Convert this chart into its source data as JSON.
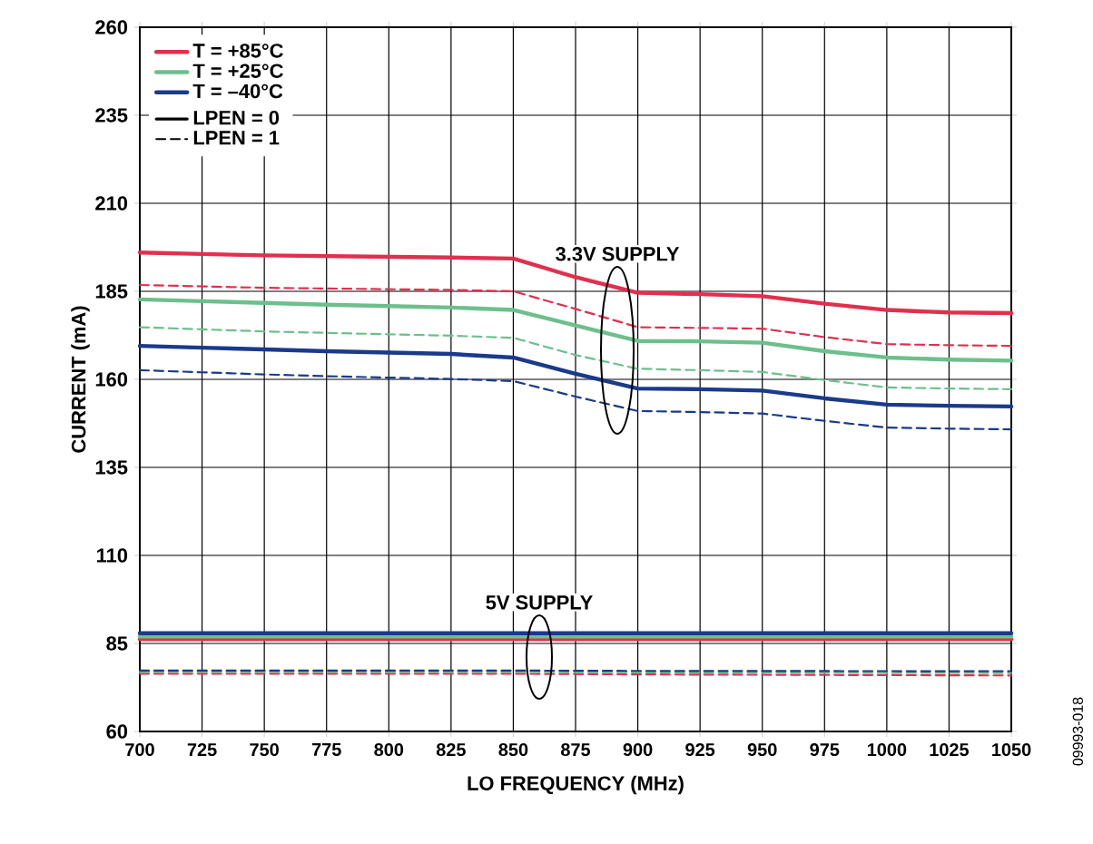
{
  "chart_data": {
    "type": "line",
    "xlabel": "LO FREQUENCY (MHz)",
    "ylabel": "CURRENT (mA)",
    "x": [
      700,
      725,
      750,
      775,
      800,
      825,
      850,
      875,
      900,
      925,
      950,
      975,
      1000,
      1025,
      1050
    ],
    "xlim": [
      700,
      1050
    ],
    "ylim": [
      60,
      260
    ],
    "xticks": [
      700,
      725,
      750,
      775,
      800,
      825,
      850,
      875,
      900,
      925,
      950,
      975,
      1000,
      1025,
      1050
    ],
    "yticks": [
      60,
      85,
      110,
      135,
      160,
      185,
      210,
      235,
      260
    ],
    "grid": true,
    "legend": "top left",
    "marker": "none",
    "series": [
      {
        "name": "T = +85°C",
        "color": "#e0304e",
        "line_style": "solid",
        "values": [
          196,
          195.6,
          195.2,
          195,
          194.8,
          194.6,
          194.3,
          189,
          184.6,
          184.2,
          183.6,
          181.5,
          179.7,
          179,
          178.8
        ]
      },
      {
        "name": "T = +25°C",
        "color": "#6dbf8c",
        "line_style": "solid",
        "values": [
          182.7,
          182.2,
          181.7,
          181.2,
          180.8,
          180.4,
          179.7,
          175.3,
          170.9,
          170.8,
          170.4,
          168,
          166.2,
          165.6,
          165.3
        ]
      },
      {
        "name": "T = –40°C",
        "color": "#1a3a8a",
        "line_style": "solid",
        "values": [
          169.5,
          169,
          168.5,
          168,
          167.6,
          167.2,
          166.2,
          161.6,
          157.4,
          157.2,
          156.8,
          154.6,
          152.8,
          152.5,
          152.3
        ]
      },
      {
        "name": "LPEN = 0",
        "color": "#000000",
        "line_style": "solid",
        "values": [
          null,
          null,
          null,
          null,
          null,
          null,
          null,
          null,
          null,
          null,
          null,
          null,
          null,
          null,
          null
        ]
      },
      {
        "name": "LPEN = 1",
        "color": "#000000",
        "line_style": "dashed",
        "values": [
          null,
          null,
          null,
          null,
          null,
          null,
          null,
          null,
          null,
          null,
          null,
          null,
          null,
          null,
          null
        ]
      },
      {
        "color": "#e0304e",
        "line_style": "dashed",
        "values": [
          186.8,
          186.4,
          186,
          185.8,
          185.6,
          185.4,
          185,
          180,
          174.8,
          174.6,
          174.4,
          172,
          170,
          169.7,
          169.5
        ]
      },
      {
        "color": "#6dbf8c",
        "line_style": "dashed",
        "values": [
          174.8,
          174.2,
          173.6,
          173.2,
          172.8,
          172.4,
          171.8,
          166.9,
          163,
          162.6,
          162.1,
          159.8,
          157.7,
          157.4,
          157.2
        ]
      },
      {
        "color": "#1a3a8a",
        "line_style": "dashed",
        "values": [
          162.6,
          162,
          161.4,
          160.9,
          160.5,
          160.1,
          159.5,
          155.1,
          151,
          150.7,
          150.3,
          148.2,
          146.3,
          146,
          145.8
        ]
      },
      {
        "color": "#e0304e",
        "line_style": "solid",
        "x": [
          700,
          850,
          900,
          1050
        ],
        "values": [
          86.2,
          86.2,
          86.2,
          86.2
        ]
      },
      {
        "color": "#6dbf8c",
        "line_style": "solid",
        "x": [
          700,
          850,
          900,
          1050
        ],
        "values": [
          87,
          87,
          87,
          87
        ]
      },
      {
        "color": "#1a3a8a",
        "line_style": "solid",
        "x": [
          700,
          850,
          900,
          1050
        ],
        "values": [
          87.9,
          87.9,
          87.9,
          87.9
        ]
      },
      {
        "color": "#e0304e",
        "line_style": "dashed",
        "x": [
          700,
          850,
          900,
          1050
        ],
        "values": [
          76.4,
          76.4,
          76.2,
          75.9
        ]
      },
      {
        "color": "#6dbf8c",
        "line_style": "dashed",
        "x": [
          700,
          850,
          900,
          1050
        ],
        "values": [
          76.9,
          76.9,
          76.8,
          76.6
        ]
      },
      {
        "color": "#1a3a8a",
        "line_style": "dashed",
        "x": [
          700,
          850,
          900,
          1050
        ],
        "values": [
          77.3,
          77.3,
          77.2,
          77.1
        ]
      }
    ],
    "annotations": [
      "3.3V SUPPLY",
      "5V SUPPLY",
      "09993-018"
    ]
  }
}
